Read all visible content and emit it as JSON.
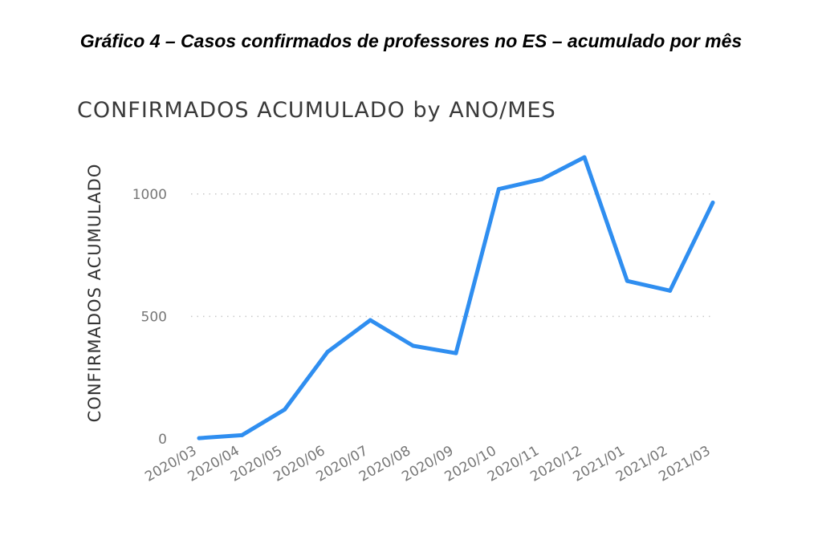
{
  "caption": "Gráfico 4 – Casos confirmados de professores no ES – acumulado por mês",
  "chart_data": {
    "type": "line",
    "title": "CONFIRMADOS ACUMULADO by ANO/MES",
    "xlabel": "",
    "ylabel": "CONFIRMADOS ACUMULADO",
    "categories": [
      "2020/03",
      "2020/04",
      "2020/05",
      "2020/06",
      "2020/07",
      "2020/08",
      "2020/09",
      "2020/10",
      "2020/11",
      "2020/12",
      "2021/01",
      "2021/02",
      "2021/03"
    ],
    "series": [
      {
        "values": [
          3,
          15,
          120,
          355,
          485,
          380,
          350,
          1020,
          1060,
          1150,
          645,
          605,
          965
        ]
      }
    ],
    "ylim": [
      0,
      1150
    ],
    "yticks": [
      0,
      500,
      1000
    ],
    "grid": true,
    "line_color": "#2f8ef0"
  }
}
